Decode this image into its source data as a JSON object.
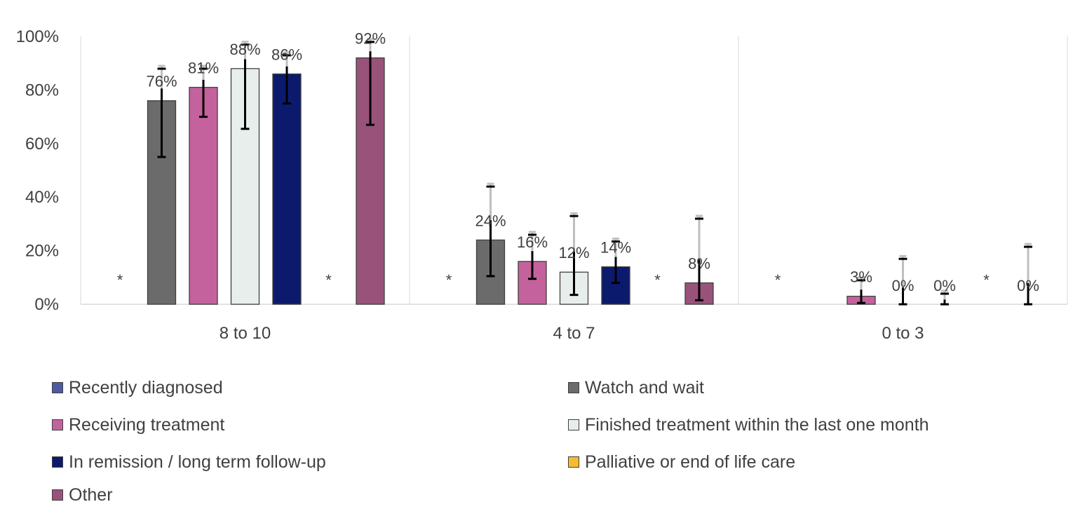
{
  "chart_data": {
    "type": "bar",
    "categories": [
      "8 to 10",
      "4 to 7",
      "0 to 3"
    ],
    "ylim": [
      0,
      100
    ],
    "yticks": [
      "0%",
      "20%",
      "40%",
      "60%",
      "80%",
      "100%"
    ],
    "ytick_values": [
      0,
      20,
      40,
      60,
      80,
      100
    ],
    "grid": "vertical group separators",
    "legend_position": "bottom",
    "suppressed_marker": "*",
    "series": [
      {
        "name": "Recently diagnosed",
        "color": "#4f5aa3",
        "values": [
          null,
          null,
          null
        ],
        "labels": [
          "*",
          "*",
          "*"
        ],
        "err_low": [
          null,
          null,
          null
        ],
        "err_high": [
          null,
          null,
          null
        ]
      },
      {
        "name": "Watch and wait",
        "color": "#6b6b6b",
        "values": [
          76,
          24,
          null
        ],
        "labels": [
          "76%",
          "24%",
          ""
        ],
        "err_low": [
          55,
          10.5,
          null
        ],
        "err_high": [
          89,
          45,
          null
        ]
      },
      {
        "name": "Receiving treatment",
        "color": "#c4629d",
        "values": [
          81,
          16,
          3
        ],
        "labels": [
          "81%",
          "16%",
          "3%"
        ],
        "err_low": [
          70,
          9.5,
          0.5
        ],
        "err_high": [
          89,
          27,
          10
        ]
      },
      {
        "name": "Finished treatment within the last one month",
        "color": "#e8eeec",
        "values": [
          88,
          12,
          0
        ],
        "labels": [
          "88%",
          "12%",
          "0%"
        ],
        "err_low": [
          65.5,
          3.5,
          0
        ],
        "err_high": [
          98,
          34,
          18
        ]
      },
      {
        "name": "In remission / long term follow-up",
        "color": "#0c1a6e",
        "values": [
          86,
          14,
          0
        ],
        "labels": [
          "86%",
          "14%",
          "0%"
        ],
        "err_low": [
          75,
          8,
          0
        ],
        "err_high": [
          94,
          24.5,
          5
        ]
      },
      {
        "name": "Palliative or end of life care",
        "color": "#f5bc2f",
        "values": [
          null,
          null,
          null
        ],
        "labels": [
          "*",
          "*",
          "*"
        ],
        "err_low": [
          null,
          null,
          null
        ],
        "err_high": [
          null,
          null,
          null
        ]
      },
      {
        "name": "Other",
        "color": "#99527a",
        "values": [
          92,
          8,
          0
        ],
        "labels": [
          "92%",
          "8%",
          "0%"
        ],
        "err_low": [
          67,
          1.5,
          0
        ],
        "err_high": [
          99,
          33,
          22.5
        ]
      }
    ]
  },
  "legend": [
    {
      "label": "Recently diagnosed",
      "color": "#4f5aa3"
    },
    {
      "label": "Watch and wait",
      "color": "#6b6b6b"
    },
    {
      "label": "Receiving treatment",
      "color": "#c4629d"
    },
    {
      "label": "Finished treatment within the last one month",
      "color": "#e8eeec"
    },
    {
      "label": "In remission / long term follow-up",
      "color": "#0c1a6e"
    },
    {
      "label": "Palliative or end of life care",
      "color": "#f5bc2f"
    },
    {
      "label": "Other",
      "color": "#99527a"
    }
  ]
}
